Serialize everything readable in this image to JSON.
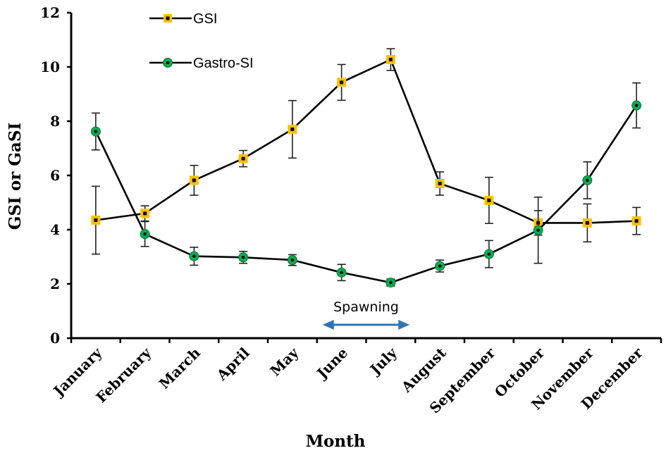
{
  "chart_data": {
    "type": "line",
    "xlabel": "Month",
    "ylabel": "GSI or GaSI",
    "ylim": [
      0,
      12
    ],
    "yticks": [
      0,
      2,
      4,
      6,
      8,
      10,
      12
    ],
    "grid": false,
    "legend_placement": "top-center",
    "categories": [
      "January",
      "February",
      "March",
      "April",
      "May",
      "June",
      "July",
      "August",
      "September",
      "October",
      "November",
      "December"
    ],
    "series": [
      {
        "name": "GSI",
        "marker": "square",
        "marker_fill": "#FFC000",
        "line_color": "#000000",
        "values": [
          4.35,
          4.6,
          5.82,
          6.62,
          7.7,
          9.43,
          10.27,
          5.7,
          5.08,
          4.25,
          4.25,
          4.32
        ],
        "error": [
          1.25,
          0.28,
          0.55,
          0.3,
          1.06,
          0.66,
          0.4,
          0.43,
          0.85,
          0.45,
          0.7,
          0.5
        ]
      },
      {
        "name": "Gastro-SI",
        "marker": "circle",
        "marker_fill": "#00B050",
        "line_color": "#000000",
        "values": [
          7.62,
          3.84,
          3.02,
          2.98,
          2.88,
          2.42,
          2.05,
          2.66,
          3.1,
          3.98,
          5.82,
          8.58
        ],
        "error": [
          0.68,
          0.46,
          0.33,
          0.22,
          0.2,
          0.3,
          0.13,
          0.22,
          0.5,
          1.22,
          0.68,
          0.83
        ]
      }
    ],
    "annotations": [
      {
        "text": "Spawning",
        "type": "double-arrow",
        "color": "#2E75B6",
        "from_category": "June",
        "to_category": "July"
      }
    ]
  }
}
